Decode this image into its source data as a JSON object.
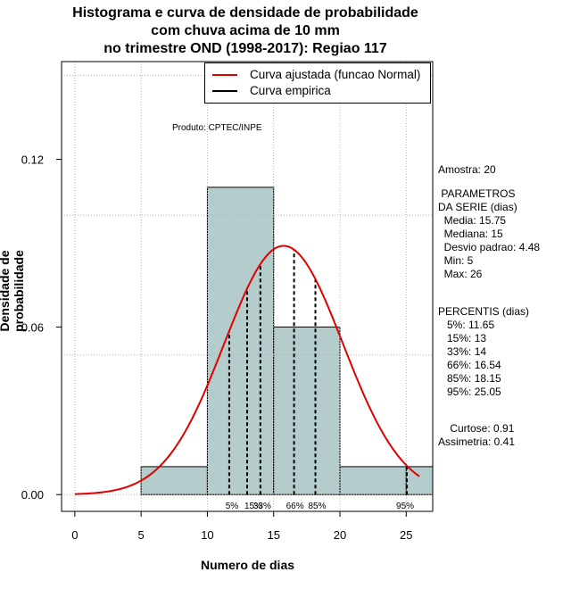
{
  "title_lines": [
    "Histograma e curva de densidade de probabilidade",
    "com chuva acima de 10 mm",
    "no trimestre OND (1998-2017): Regiao 117"
  ],
  "product_note": "Produto: CPTEC/INPE",
  "legend": {
    "fitted_label": "Curva ajustada (funcao Normal)",
    "empirical_label": "Curva empirica"
  },
  "stats": {
    "sample": "Amostra: 20",
    "params_title": " PARAMETROS",
    "params_subtitle": "DA SERIE (dias)",
    "mean": "  Media: 15.75",
    "median": "  Mediana: 15",
    "sd": "  Desvio padrao: 4.48",
    "min": "  Min: 5",
    "max": "  Max: 26",
    "percentile_title": "PERCENTIS (dias)",
    "p5": "   5%: 11.65",
    "p15": "   15%: 13",
    "p33": "   33%: 14",
    "p66": "   66%: 16.54",
    "p85": "   85%: 18.15",
    "p95": "   95%: 25.05",
    "kurtosis": "    Curtose: 0.91",
    "skewness": "Assimetria: 0.41"
  },
  "chart_data": {
    "type": "bar",
    "xlabel": "Numero de dias",
    "ylabel": "Densidade de probabilidade",
    "xlim": [
      -1,
      27
    ],
    "ylim": [
      -0.006,
      0.155
    ],
    "xticks": [
      0,
      5,
      10,
      15,
      20,
      25
    ],
    "yticks": [
      0.0,
      0.06,
      0.12
    ],
    "ytick_labels": [
      "0.00",
      "0.06",
      "0.12"
    ],
    "histogram": [
      {
        "x0": 5,
        "x1": 10,
        "density": 0.01
      },
      {
        "x0": 10,
        "x1": 15,
        "density": 0.11
      },
      {
        "x0": 15,
        "x1": 20,
        "density": 0.06
      },
      {
        "x0": 20,
        "x1": 25,
        "density": 0.01
      },
      {
        "x0": 25,
        "x1": 30,
        "density": 0.01
      }
    ],
    "normal_fit": {
      "mean": 15.75,
      "sd": 4.48,
      "x_from": 0,
      "x_to": 26
    },
    "percentiles": [
      {
        "label": "5%",
        "value": 11.65
      },
      {
        "label": "15%",
        "value": 13
      },
      {
        "label": "33%",
        "value": 14
      },
      {
        "label": "66%",
        "value": 16.54
      },
      {
        "label": "85%",
        "value": 18.15
      },
      {
        "label": "95%",
        "value": 25.05
      }
    ],
    "grid": true,
    "legend_position": "top-right",
    "colors": {
      "bar_fill": "#b5cccc",
      "fitted_curve": "#e00000",
      "empirical_curve": "#000000",
      "grid": "#b0b0b0"
    }
  }
}
